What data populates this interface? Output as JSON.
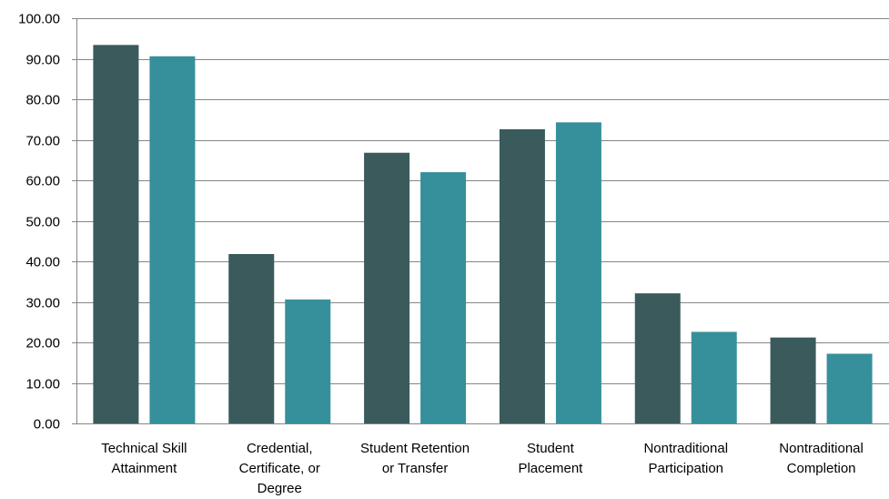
{
  "chart_data": {
    "type": "bar",
    "categories": [
      [
        "Technical Skill",
        "Attainment"
      ],
      [
        "Credential,",
        "Certificate, or",
        "Degree"
      ],
      [
        "Student Retention",
        "or Transfer"
      ],
      [
        "Student",
        "Placement"
      ],
      [
        "Nontraditional",
        "Participation"
      ],
      [
        "Nontraditional",
        "Completion"
      ]
    ],
    "series": [
      {
        "values": [
          93.4,
          41.8,
          66.8,
          72.6,
          32.1,
          21.2
        ],
        "color": "#3a5a5c"
      },
      {
        "values": [
          90.6,
          30.6,
          62.0,
          74.3,
          22.6,
          17.2
        ],
        "color": "#36909b"
      }
    ],
    "ylim": [
      0,
      100
    ],
    "yticks": [
      "0.00",
      "10.00",
      "20.00",
      "30.00",
      "40.00",
      "50.00",
      "60.00",
      "70.00",
      "80.00",
      "90.00",
      "100.00"
    ],
    "grid": true,
    "legend": "none",
    "title": "",
    "xlabel": "",
    "ylabel": ""
  }
}
